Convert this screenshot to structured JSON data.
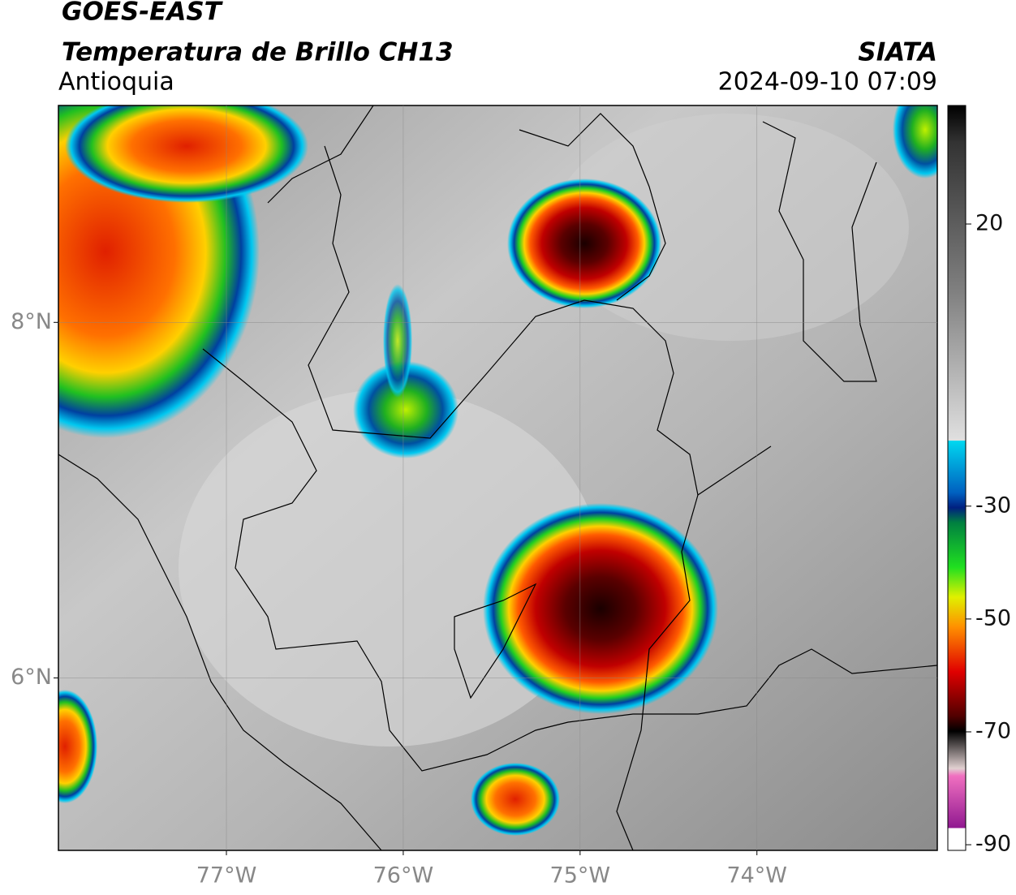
{
  "header": {
    "title": "GOES-EAST",
    "subtitle": "Temperatura de Brillo CH13",
    "region": "Antioquia",
    "source": "SIATA",
    "datetime": "2024-09-10 07:09"
  },
  "map": {
    "xlim": [
      -77.95,
      -72.98
    ],
    "ylim": [
      5.03,
      9.22
    ],
    "xticks": [
      {
        "value": -77,
        "label": "77°W"
      },
      {
        "value": -76,
        "label": "76°W"
      },
      {
        "value": -75,
        "label": "75°W"
      },
      {
        "value": -74,
        "label": "74°W"
      }
    ],
    "yticks": [
      {
        "value": 8,
        "label": "8°N"
      },
      {
        "value": 6,
        "label": "6°N"
      }
    ],
    "grid": true
  },
  "colorbar": {
    "lim": [
      -91,
      41
    ],
    "ticks": [
      20,
      -30,
      -50,
      -70,
      -90
    ]
  }
}
